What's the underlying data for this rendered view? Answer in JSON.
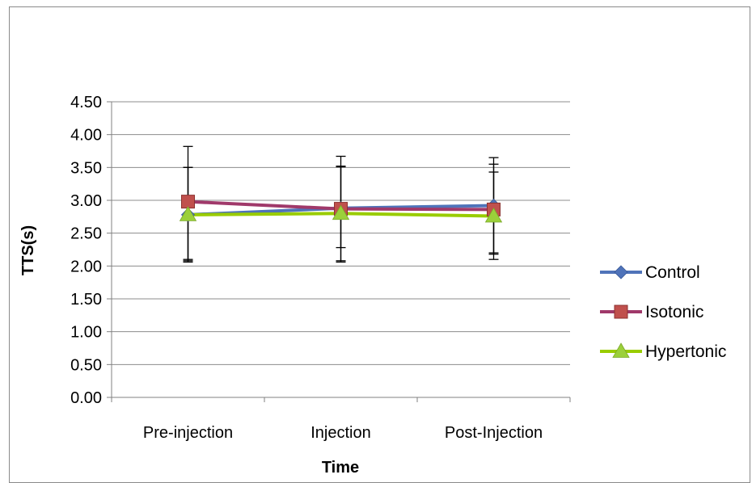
{
  "chart_data": {
    "type": "line",
    "title": "",
    "xlabel": "Time",
    "ylabel": "TTS(s)",
    "categories": [
      "Pre-injection",
      "Injection",
      "Post-Injection"
    ],
    "ylim": [
      0,
      4.5
    ],
    "ytick_step": 0.5,
    "yticks": [
      "0.00",
      "0.50",
      "1.00",
      "1.50",
      "2.00",
      "2.50",
      "3.00",
      "3.50",
      "4.00",
      "4.50"
    ],
    "grid": true,
    "legend_position": "right",
    "series": [
      {
        "name": "Control",
        "values": [
          2.78,
          2.88,
          2.92
        ],
        "error_low": [
          2.08,
          2.08,
          2.2
        ],
        "error_high": [
          3.5,
          3.67,
          3.65
        ],
        "color": "#4f73b9",
        "marker": "diamond"
      },
      {
        "name": "Isotonic",
        "values": [
          2.98,
          2.87,
          2.86
        ],
        "error_low": [
          2.1,
          2.28,
          2.18
        ],
        "error_high": [
          3.82,
          3.52,
          3.55
        ],
        "color": "#a0396a",
        "marker": "square"
      },
      {
        "name": "Hypertonic",
        "values": [
          2.78,
          2.8,
          2.76
        ],
        "error_low": [
          2.06,
          2.06,
          2.1
        ],
        "error_high": [
          3.5,
          3.51,
          3.43
        ],
        "color": "#99cc00",
        "marker": "triangle"
      }
    ]
  }
}
